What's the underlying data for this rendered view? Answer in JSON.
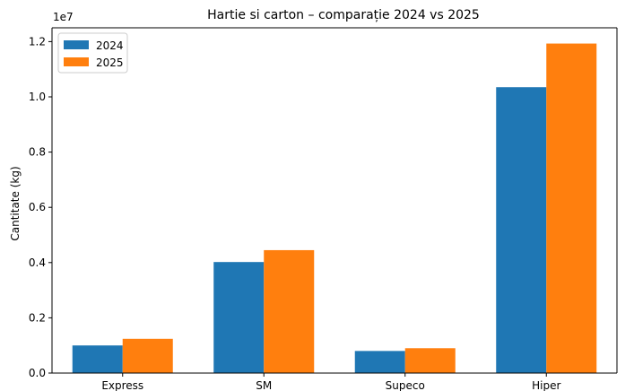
{
  "chart_data": {
    "type": "bar",
    "title": "Hartie si carton – comparație 2024 vs 2025",
    "xlabel": "",
    "ylabel": "Cantitate (kg)",
    "y_offset_label": "1e7",
    "ylim": [
      0,
      12500000
    ],
    "yticks": [
      0,
      2000000,
      4000000,
      6000000,
      8000000,
      10000000,
      12000000
    ],
    "ytick_labels": [
      "0.0",
      "0.2",
      "0.4",
      "0.6",
      "0.8",
      "1.0",
      "1.2"
    ],
    "categories": [
      "Express",
      "SM",
      "Supeco",
      "Hiper"
    ],
    "series": [
      {
        "name": "2024",
        "color": "#1f77b4",
        "values": [
          1000000,
          4020000,
          800000,
          10350000
        ]
      },
      {
        "name": "2025",
        "color": "#ff7f0e",
        "values": [
          1240000,
          4450000,
          900000,
          11930000
        ]
      }
    ],
    "legend_position": "top-left",
    "grid": false
  }
}
